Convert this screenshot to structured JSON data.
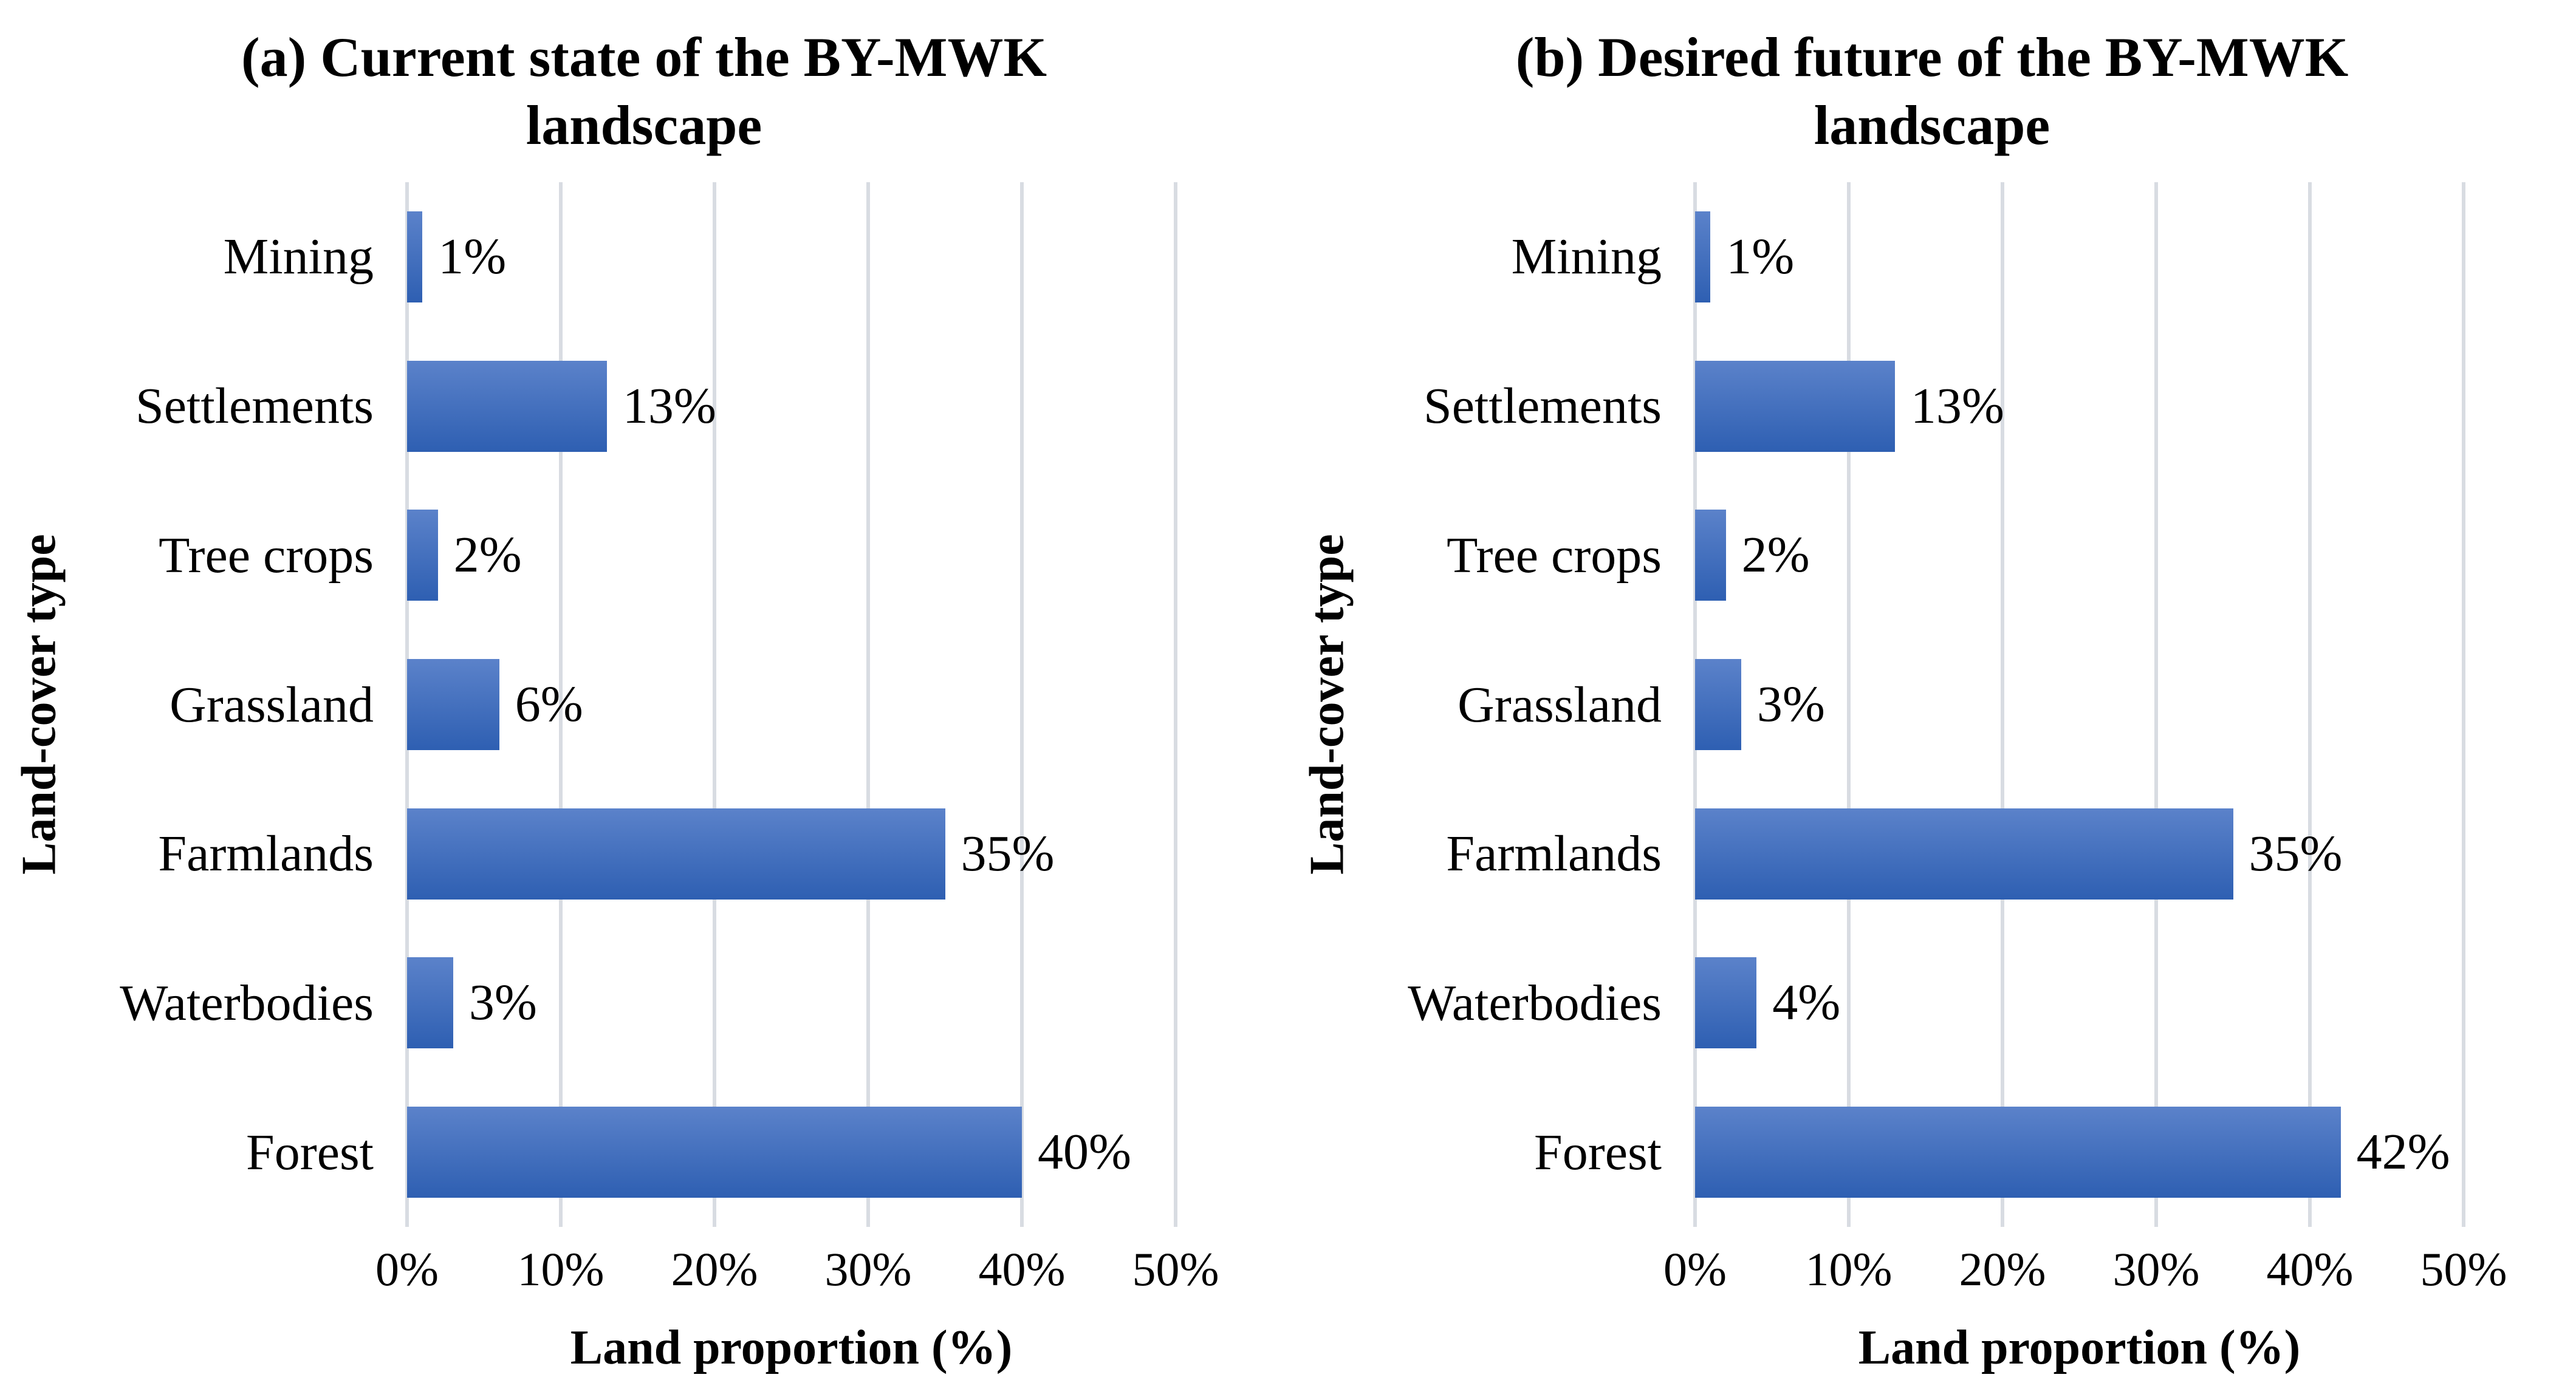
{
  "figure": {
    "background": "#ffffff",
    "bar_gradient_top": "#5b82ca",
    "bar_gradient_bottom": "#2e5fb2",
    "gridline_color": "#d8dce2",
    "text_color": "#000000"
  },
  "chart_data": [
    {
      "type": "bar",
      "orientation": "horizontal",
      "title": "(a) Current state of the BY-MWK landscape",
      "xlabel": "Land proportion (%)",
      "ylabel": "Land-cover type",
      "categories": [
        "Mining",
        "Settlements",
        "Tree crops",
        "Grassland",
        "Farmlands",
        "Waterbodies",
        "Forest"
      ],
      "values": [
        1,
        13,
        2,
        6,
        35,
        3,
        40
      ],
      "value_labels": [
        "1%",
        "13%",
        "2%",
        "6%",
        "35%",
        "3%",
        "40%"
      ],
      "x_ticks": [
        "0%",
        "10%",
        "20%",
        "30%",
        "40%",
        "50%"
      ],
      "xlim": [
        0,
        50
      ],
      "grid": true,
      "legend": "none"
    },
    {
      "type": "bar",
      "orientation": "horizontal",
      "title": "(b) Desired future of the BY-MWK landscape",
      "xlabel": "Land proportion (%)",
      "ylabel": "Land-cover type",
      "categories": [
        "Mining",
        "Settlements",
        "Tree crops",
        "Grassland",
        "Farmlands",
        "Waterbodies",
        "Forest"
      ],
      "values": [
        1,
        13,
        2,
        3,
        35,
        4,
        42
      ],
      "value_labels": [
        "1%",
        "13%",
        "2%",
        "3%",
        "35%",
        "4%",
        "42%"
      ],
      "x_ticks": [
        "0%",
        "10%",
        "20%",
        "30%",
        "40%",
        "50%"
      ],
      "xlim": [
        0,
        50
      ],
      "grid": true,
      "legend": "none"
    }
  ]
}
